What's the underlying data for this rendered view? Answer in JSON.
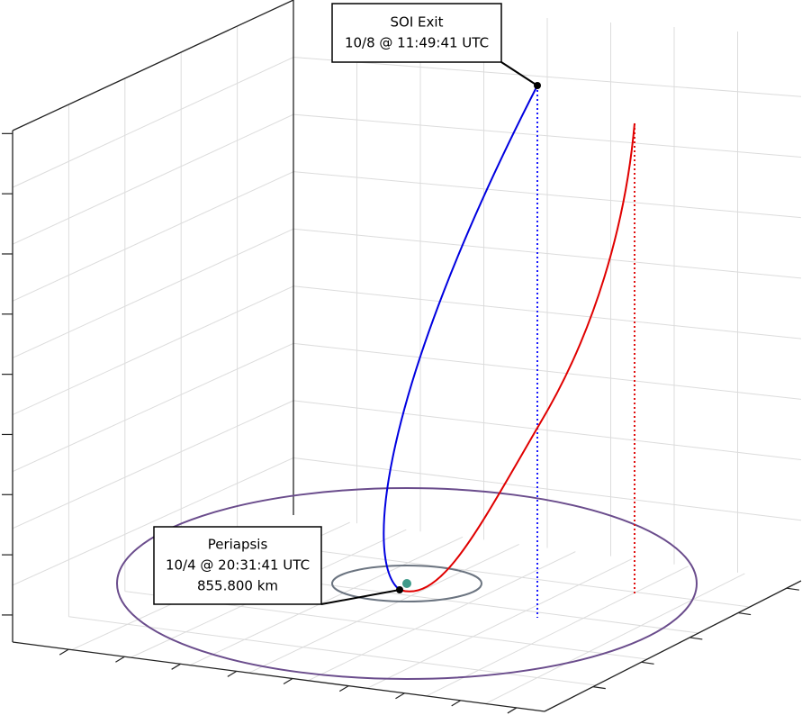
{
  "annotations": [
    {
      "lines": [
        "SOI Exit",
        "10/8 @ 11:49:41 UTC"
      ]
    },
    {
      "lines": [
        "Periapsis",
        "10/4 @ 20:31:41 UTC",
        "855.800 km"
      ]
    }
  ]
}
